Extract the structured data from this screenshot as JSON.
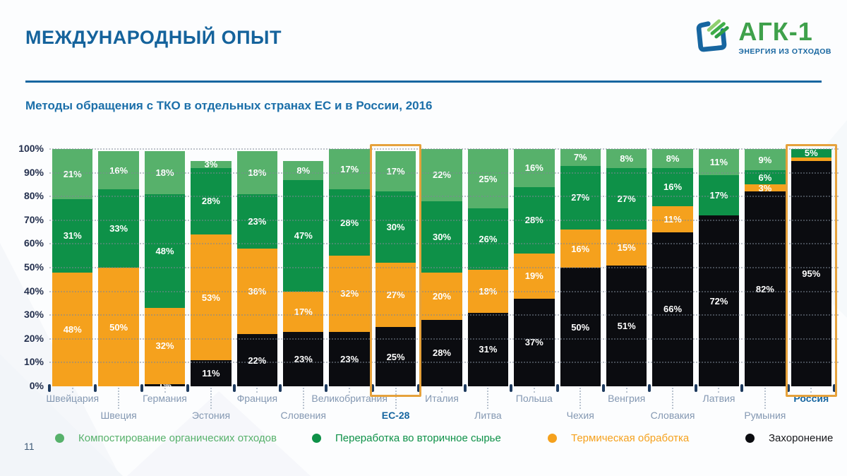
{
  "page": {
    "number": "11"
  },
  "header": {
    "title": "МЕЖДУНАРОДНЫЙ ОПЫТ"
  },
  "logo": {
    "name": "АГК-1",
    "tagline": "ЭНЕРГИЯ ИЗ ОТХОДОВ"
  },
  "subtitle": "Методы обращения с ТКО в отдельных странах ЕС и в России, 2016",
  "colors": {
    "title_blue": "#15639c",
    "divider_blue": "#1766a0",
    "axis_label_navy": "#24304e",
    "country_label": "#8498b2",
    "country_label_highlight": "#1766a0",
    "highlight_border": "#e6a23c",
    "compost_green": "#57b16b",
    "recycle_green": "#0e9148",
    "thermal_orange": "#f5a11d",
    "landfill_black": "#0b0c10"
  },
  "chart_data": {
    "type": "stacked_bar",
    "units": "percent",
    "title": "Методы обращения с ТКО в отдельных странах ЕС и в России, 2016",
    "ylim": [
      0,
      100
    ],
    "yticks": [
      "0%",
      "10%",
      "20%",
      "30%",
      "40%",
      "50%",
      "60%",
      "70%",
      "80%",
      "90%",
      "100%"
    ],
    "grid": "dotted horizontal",
    "legend_position": "bottom",
    "legend": [
      {
        "key": "compost",
        "label": "Компостирование органических отходов",
        "color": "#57b16b"
      },
      {
        "key": "recycle",
        "label": "Переработка во вторичное сырье",
        "color": "#0e9148"
      },
      {
        "key": "thermal",
        "label": "Термическая обработка",
        "color": "#f5a11d"
      },
      {
        "key": "landfill",
        "label": "Захоронение",
        "color": "#0b0c10"
      }
    ],
    "bars": [
      {
        "country": "Швейцария",
        "label_row": 1,
        "highlighted": false,
        "segments": [
          {
            "key": "thermal",
            "value": 48,
            "label": "48%"
          },
          {
            "key": "recycle",
            "value": 31,
            "label": "31%"
          },
          {
            "key": "compost",
            "value": 21,
            "label": "21%"
          }
        ]
      },
      {
        "country": "Швеция",
        "label_row": 2,
        "highlighted": false,
        "segments": [
          {
            "key": "thermal",
            "value": 50,
            "label": "50%"
          },
          {
            "key": "recycle",
            "value": 33,
            "label": "33%"
          },
          {
            "key": "compost",
            "value": 16,
            "label": "16%"
          }
        ]
      },
      {
        "country": "Германия",
        "label_row": 1,
        "highlighted": false,
        "segments": [
          {
            "key": "landfill",
            "value": 1,
            "label": "1%"
          },
          {
            "key": "thermal",
            "value": 32,
            "label": "32%"
          },
          {
            "key": "recycle",
            "value": 48,
            "label": "48%"
          },
          {
            "key": "compost",
            "value": 18,
            "label": "18%"
          }
        ]
      },
      {
        "country": "Эстония",
        "label_row": 2,
        "highlighted": false,
        "segments": [
          {
            "key": "landfill",
            "value": 11,
            "label": "11%"
          },
          {
            "key": "thermal",
            "value": 53,
            "label": "53%"
          },
          {
            "key": "recycle",
            "value": 28,
            "label": "28%"
          },
          {
            "key": "compost",
            "value": 3,
            "label": "3%"
          }
        ]
      },
      {
        "country": "Франция",
        "label_row": 1,
        "highlighted": false,
        "segments": [
          {
            "key": "landfill",
            "value": 22,
            "label": "22%"
          },
          {
            "key": "thermal",
            "value": 36,
            "label": "36%"
          },
          {
            "key": "recycle",
            "value": 23,
            "label": "23%"
          },
          {
            "key": "compost",
            "value": 18,
            "label": "18%"
          }
        ]
      },
      {
        "country": "Словения",
        "label_row": 2,
        "highlighted": false,
        "segments": [
          {
            "key": "landfill",
            "value": 23,
            "label": "23%"
          },
          {
            "key": "thermal",
            "value": 17,
            "label": "17%"
          },
          {
            "key": "recycle",
            "value": 47,
            "label": "47%"
          },
          {
            "key": "compost",
            "value": 8,
            "label": "8%"
          }
        ]
      },
      {
        "country": "Великобритания",
        "label_row": 1,
        "highlighted": false,
        "segments": [
          {
            "key": "landfill",
            "value": 23,
            "label": "23%"
          },
          {
            "key": "thermal",
            "value": 32,
            "label": "32%"
          },
          {
            "key": "recycle",
            "value": 28,
            "label": "28%"
          },
          {
            "key": "compost",
            "value": 17,
            "label": "17%"
          }
        ]
      },
      {
        "country": "ЕС-28",
        "label_row": 2,
        "highlighted": true,
        "segments": [
          {
            "key": "landfill",
            "value": 25,
            "label": "25%"
          },
          {
            "key": "thermal",
            "value": 27,
            "label": "27%"
          },
          {
            "key": "recycle",
            "value": 30,
            "label": "30%"
          },
          {
            "key": "compost",
            "value": 17,
            "label": "17%"
          }
        ]
      },
      {
        "country": "Италия",
        "label_row": 1,
        "highlighted": false,
        "segments": [
          {
            "key": "landfill",
            "value": 28,
            "label": "28%"
          },
          {
            "key": "thermal",
            "value": 20,
            "label": "20%"
          },
          {
            "key": "recycle",
            "value": 30,
            "label": "30%"
          },
          {
            "key": "compost",
            "value": 22,
            "label": "22%"
          }
        ]
      },
      {
        "country": "Литва",
        "label_row": 2,
        "highlighted": false,
        "segments": [
          {
            "key": "landfill",
            "value": 31,
            "label": "31%"
          },
          {
            "key": "thermal",
            "value": 18,
            "label": "18%"
          },
          {
            "key": "recycle",
            "value": 26,
            "label": "26%"
          },
          {
            "key": "compost",
            "value": 25,
            "label": "25%"
          }
        ]
      },
      {
        "country": "Польша",
        "label_row": 1,
        "highlighted": false,
        "segments": [
          {
            "key": "landfill",
            "value": 37,
            "label": "37%"
          },
          {
            "key": "thermal",
            "value": 19,
            "label": "19%"
          },
          {
            "key": "recycle",
            "value": 28,
            "label": "28%"
          },
          {
            "key": "compost",
            "value": 16,
            "label": "16%"
          }
        ]
      },
      {
        "country": "Чехия",
        "label_row": 2,
        "highlighted": false,
        "segments": [
          {
            "key": "landfill",
            "value": 50,
            "label": "50%"
          },
          {
            "key": "thermal",
            "value": 16,
            "label": "16%"
          },
          {
            "key": "recycle",
            "value": 27,
            "label": "27%"
          },
          {
            "key": "compost",
            "value": 7,
            "label": "7%"
          }
        ]
      },
      {
        "country": "Венгрия",
        "label_row": 1,
        "highlighted": false,
        "segments": [
          {
            "key": "landfill",
            "value": 51,
            "label": "51%"
          },
          {
            "key": "thermal",
            "value": 15,
            "label": "15%"
          },
          {
            "key": "recycle",
            "value": 27,
            "h": 26,
            "label": "27%"
          },
          {
            "key": "compost",
            "value": 8,
            "label": "8%"
          }
        ]
      },
      {
        "country": "Словакия",
        "label_row": 2,
        "highlighted": false,
        "segments": [
          {
            "key": "landfill",
            "value": 66,
            "h": 65,
            "label": "66%"
          },
          {
            "key": "thermal",
            "value": 11,
            "label": "11%"
          },
          {
            "key": "recycle",
            "value": 16,
            "label": "16%"
          },
          {
            "key": "compost",
            "value": 8,
            "label": "8%"
          }
        ]
      },
      {
        "country": "Латвия",
        "label_row": 1,
        "highlighted": false,
        "segments": [
          {
            "key": "landfill",
            "value": 72,
            "label": "72%"
          },
          {
            "key": "recycle",
            "value": 17,
            "label": "17%"
          },
          {
            "key": "compost",
            "value": 11,
            "label": "11%"
          }
        ]
      },
      {
        "country": "Румыния",
        "label_row": 2,
        "highlighted": false,
        "segments": [
          {
            "key": "landfill",
            "value": 82,
            "label": "82%"
          },
          {
            "key": "thermal",
            "value": 3,
            "label": "3%"
          },
          {
            "key": "recycle",
            "value": 6,
            "label": "6%"
          },
          {
            "key": "compost",
            "value": 9,
            "label": "9%"
          }
        ]
      },
      {
        "country": "Россия",
        "label_row": 1,
        "highlighted": true,
        "segments": [
          {
            "key": "landfill",
            "value": 95,
            "label": "95%"
          },
          {
            "key": "thermal",
            "value": 1,
            "h": 1.5,
            "label": ""
          },
          {
            "key": "recycle",
            "value": 5,
            "h": 3.5,
            "label": "5%"
          }
        ]
      }
    ]
  }
}
